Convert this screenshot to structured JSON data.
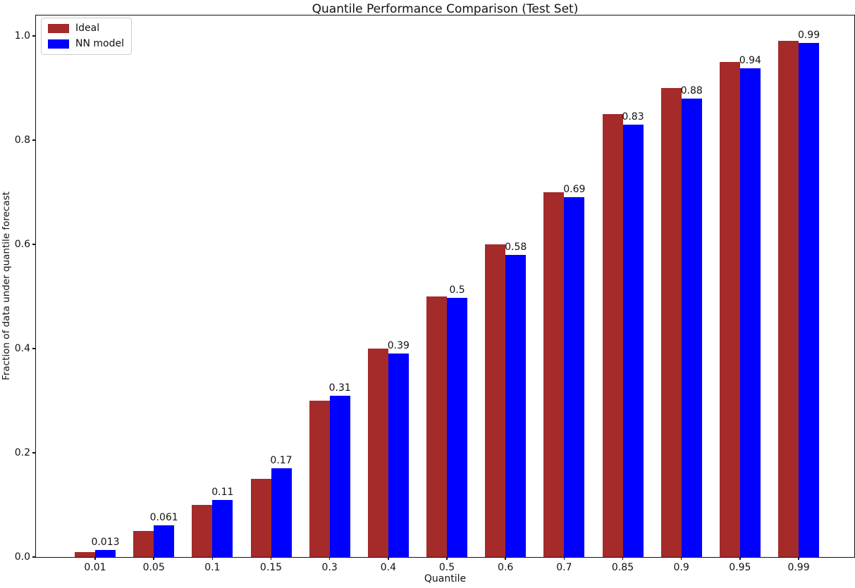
{
  "chart_data": {
    "type": "bar",
    "title": "Quantile Performance Comparison (Test Set)",
    "xlabel": "Quantile",
    "ylabel": "Fraction of data under quantile forecast",
    "categories": [
      "0.01",
      "0.05",
      "0.1",
      "0.15",
      "0.3",
      "0.4",
      "0.5",
      "0.6",
      "0.7",
      "0.85",
      "0.9",
      "0.95",
      "0.99"
    ],
    "series": [
      {
        "name": "Ideal",
        "color": "#A52A2A",
        "values": [
          0.01,
          0.05,
          0.1,
          0.15,
          0.3,
          0.4,
          0.5,
          0.6,
          0.7,
          0.85,
          0.9,
          0.95,
          0.99
        ]
      },
      {
        "name": "NN model",
        "color": "#0000FF",
        "values": [
          0.013,
          0.061,
          0.11,
          0.17,
          0.31,
          0.39,
          0.497,
          0.58,
          0.69,
          0.83,
          0.88,
          0.938,
          0.987
        ],
        "labels": [
          "0.013",
          "0.061",
          "0.11",
          "0.17",
          "0.31",
          "0.39",
          "0.5",
          "0.58",
          "0.69",
          "0.83",
          "0.88",
          "0.94",
          "0.99"
        ]
      }
    ],
    "yticks": [
      "0.0",
      "0.2",
      "0.4",
      "0.6",
      "0.8",
      "1.0"
    ],
    "ylim": [
      0,
      1.042
    ],
    "legend_position": "upper left",
    "grid": false,
    "background": "#ffffff"
  }
}
